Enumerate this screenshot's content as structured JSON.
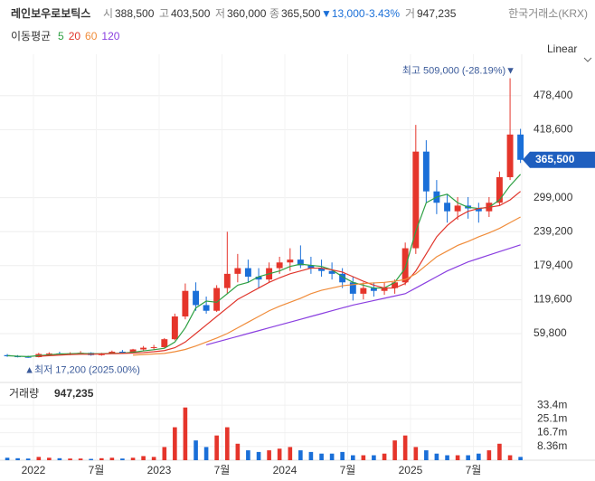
{
  "header": {
    "name": "레인보우로보틱스",
    "open_label": "시",
    "open": "388,500",
    "high_label": "고",
    "high": "403,500",
    "low_label": "저",
    "low": "360,000",
    "close_label": "종",
    "close": "365,500",
    "change": "▼13,000",
    "change_pct": "-3.43%",
    "volume_label": "거",
    "volume": "947,235",
    "exchange": "한국거래소(KRX)"
  },
  "chart_data": {
    "type": "candlestick",
    "x": [
      2021.792,
      2021.875,
      2021.958,
      2022.042,
      2022.125,
      2022.208,
      2022.292,
      2022.375,
      2022.458,
      2022.542,
      2022.625,
      2022.708,
      2022.792,
      2022.875,
      2022.958,
      2023.042,
      2023.125,
      2023.208,
      2023.292,
      2023.375,
      2023.458,
      2023.542,
      2023.625,
      2023.708,
      2023.792,
      2023.875,
      2023.958,
      2024.042,
      2024.125,
      2024.208,
      2024.292,
      2024.375,
      2024.458,
      2024.542,
      2024.625,
      2024.708,
      2024.792,
      2024.875,
      2024.958,
      2025.042,
      2025.125,
      2025.208,
      2025.292,
      2025.375,
      2025.458,
      2025.542,
      2025.625,
      2025.708,
      2025.792,
      2025.875
    ],
    "open": [
      22000,
      20000,
      19000,
      18500,
      24000,
      25000,
      24000,
      25000,
      26000,
      22000,
      25000,
      28000,
      27000,
      32000,
      35000,
      36000,
      50000,
      90000,
      135000,
      110000,
      100000,
      140000,
      165000,
      175000,
      160000,
      155000,
      175000,
      185000,
      190000,
      180000,
      175000,
      170000,
      165000,
      150000,
      130000,
      140000,
      135000,
      140000,
      150000,
      210000,
      380000,
      310000,
      290000,
      275000,
      285000,
      280000,
      275000,
      290000,
      335000,
      410000
    ],
    "high": [
      24000,
      22000,
      21000,
      26000,
      27000,
      28000,
      27000,
      29000,
      27000,
      26000,
      30000,
      31000,
      33000,
      38000,
      40000,
      52000,
      95000,
      148000,
      150000,
      125000,
      145000,
      239000,
      200000,
      190000,
      175000,
      185000,
      195000,
      210000,
      215000,
      195000,
      190000,
      185000,
      175000,
      160000,
      150000,
      150000,
      150000,
      155000,
      220000,
      427000,
      400000,
      330000,
      305000,
      300000,
      300000,
      290000,
      300000,
      345000,
      509000,
      420000
    ],
    "low": [
      19000,
      18000,
      17200,
      18000,
      22000,
      23000,
      22000,
      23000,
      21000,
      21000,
      24000,
      25000,
      26000,
      30000,
      32000,
      35000,
      48000,
      85000,
      100000,
      95000,
      98000,
      130000,
      150000,
      150000,
      140000,
      150000,
      165000,
      170000,
      175000,
      165000,
      160000,
      155000,
      140000,
      118000,
      120000,
      125000,
      128000,
      130000,
      145000,
      200000,
      290000,
      270000,
      255000,
      260000,
      262000,
      255000,
      265000,
      285000,
      330000,
      360000
    ],
    "close": [
      20000,
      19000,
      18500,
      24000,
      25000,
      24000,
      25000,
      26000,
      22000,
      25000,
      28000,
      27000,
      32000,
      35000,
      36000,
      50000,
      90000,
      135000,
      110000,
      100000,
      140000,
      165000,
      175000,
      160000,
      155000,
      175000,
      185000,
      190000,
      180000,
      175000,
      170000,
      165000,
      150000,
      130000,
      140000,
      135000,
      140000,
      150000,
      210000,
      380000,
      310000,
      290000,
      275000,
      285000,
      280000,
      275000,
      290000,
      335000,
      410000,
      365500
    ],
    "up_color": "#e5352b",
    "down_color": "#1a6fd8",
    "xlim": [
      2021.734,
      2025.885
    ],
    "xticks": [
      {
        "value": 2022,
        "label": "2022"
      },
      {
        "value": 2022.5,
        "label": "7월"
      },
      {
        "value": 2023,
        "label": "2023"
      },
      {
        "value": 2023.5,
        "label": "7월"
      },
      {
        "value": 2024,
        "label": "2024"
      },
      {
        "value": 2024.5,
        "label": "7월"
      },
      {
        "value": 2025,
        "label": "2025"
      },
      {
        "value": 2025.5,
        "label": "7월"
      }
    ],
    "ylim": [
      -21300,
      538500
    ],
    "yticks": [
      {
        "value": 59800,
        "label": "59,800"
      },
      {
        "value": 119600,
        "label": "119,600"
      },
      {
        "value": 179400,
        "label": "179,400"
      },
      {
        "value": 239200,
        "label": "239,200"
      },
      {
        "value": 299000,
        "label": "299,000"
      },
      {
        "value": 418600,
        "label": "418,600"
      },
      {
        "value": 478400,
        "label": "478,400"
      }
    ],
    "grid": true,
    "scale": "Linear",
    "last_price": {
      "value": 365500,
      "label": "365,500"
    },
    "max_annotation": "최고 509,000 (-28.19%)▼",
    "min_annotation": "▲최저 17,200 (2025.00%)",
    "legend_title": "이동평균",
    "series": [
      {
        "name": "5",
        "color": "#2ea043",
        "values": [
          21000,
          20000,
          19500,
          21000,
          22500,
          24000,
          24500,
          25000,
          24500,
          24500,
          25000,
          25500,
          27000,
          29500,
          31500,
          34000,
          45000,
          70000,
          105000,
          117000,
          115000,
          130000,
          145000,
          150000,
          160000,
          165000,
          170000,
          178000,
          182000,
          180000,
          178000,
          172000,
          160000,
          150000,
          145000,
          140000,
          140000,
          150000,
          175000,
          240000,
          290000,
          300000,
          305000,
          290000,
          282000,
          280000,
          282000,
          295000,
          320000,
          340000
        ]
      },
      {
        "name": "20",
        "color": "#e0352b",
        "values": [
          null,
          null,
          null,
          20000,
          21000,
          22000,
          23000,
          23500,
          23500,
          24000,
          24500,
          25000,
          25500,
          26500,
          28000,
          30000,
          35000,
          45000,
          60000,
          75000,
          90000,
          105000,
          120000,
          130000,
          140000,
          150000,
          158000,
          165000,
          170000,
          175000,
          175000,
          172000,
          168000,
          160000,
          152000,
          145000,
          140000,
          140000,
          148000,
          170000,
          200000,
          230000,
          250000,
          265000,
          275000,
          280000,
          282000,
          285000,
          295000,
          310000
        ]
      },
      {
        "name": "60",
        "color": "#f08c3a",
        "values": [
          null,
          null,
          null,
          null,
          null,
          null,
          null,
          null,
          null,
          null,
          null,
          null,
          22000,
          23000,
          24000,
          25000,
          28000,
          32000,
          38000,
          45000,
          52000,
          60000,
          70000,
          80000,
          90000,
          100000,
          108000,
          115000,
          122000,
          130000,
          136000,
          140000,
          144000,
          146000,
          148000,
          149000,
          150000,
          152000,
          155000,
          165000,
          180000,
          195000,
          205000,
          215000,
          222000,
          230000,
          237000,
          245000,
          255000,
          265000
        ]
      },
      {
        "name": "120",
        "color": "#8a3fe0",
        "values": [
          null,
          null,
          null,
          null,
          null,
          null,
          null,
          null,
          null,
          null,
          null,
          null,
          null,
          null,
          null,
          null,
          null,
          null,
          null,
          40000,
          45000,
          50000,
          55000,
          60000,
          65000,
          70000,
          75000,
          80000,
          85000,
          90000,
          95000,
          100000,
          105000,
          110000,
          114000,
          118000,
          122000,
          126000,
          130000,
          140000,
          150000,
          160000,
          170000,
          178000,
          186000,
          192000,
          198000,
          204000,
          210000,
          216000
        ]
      }
    ],
    "volume": {
      "label": "거래량",
      "current": "947,235",
      "values": [
        1500000,
        1200000,
        1000000,
        2000000,
        1500000,
        1200000,
        1000000,
        1000000,
        800000,
        1200000,
        1500000,
        1000000,
        1500000,
        2500000,
        2000000,
        8000000,
        20000000,
        32000000,
        12000000,
        8000000,
        15000000,
        20000000,
        10000000,
        6000000,
        5000000,
        6000000,
        7000000,
        8000000,
        6000000,
        5000000,
        4000000,
        4000000,
        5000000,
        3000000,
        3000000,
        3000000,
        4000000,
        12000000,
        15000000,
        8000000,
        6000000,
        4000000,
        3000000,
        3000000,
        3000000,
        4000000,
        6000000,
        10000000,
        3000000,
        2000000
      ],
      "ylim": [
        0,
        46100000
      ],
      "yticks": [
        {
          "value": 8360000,
          "label": "8.36m"
        },
        {
          "value": 16700000,
          "label": "16.7m"
        },
        {
          "value": 25100000,
          "label": "25.1m"
        },
        {
          "value": 33400000,
          "label": "33.4m"
        }
      ]
    }
  }
}
